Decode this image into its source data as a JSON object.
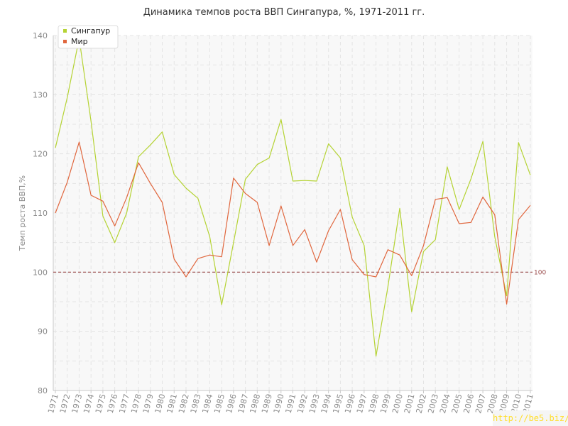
{
  "chart_data": {
    "type": "line",
    "title": "Динамика темпов роста ВВП Сингапура, %, 1971-2011 гг.",
    "ylabel": "Темп роста ВВП,%",
    "xlabel": "",
    "ylim": [
      80,
      140
    ],
    "yticks": [
      "80",
      "90",
      "100",
      "110",
      "120",
      "130",
      "140"
    ],
    "categories": [
      "1971",
      "1972",
      "1973",
      "1974",
      "1975",
      "1976",
      "1977",
      "1978",
      "1979",
      "1980",
      "1981",
      "1982",
      "1983",
      "1984",
      "1985",
      "1986",
      "1987",
      "1988",
      "1989",
      "1990",
      "1991",
      "1992",
      "1993",
      "1994",
      "1995",
      "1996",
      "1997",
      "1998",
      "1999",
      "2000",
      "2001",
      "2002",
      "2003",
      "2004",
      "2005",
      "2006",
      "2007",
      "2008",
      "2009",
      "2010",
      "2011"
    ],
    "series": [
      {
        "name": "Сингапур",
        "color": "#b5d334",
        "values": [
          121,
          129.5,
          139.5,
          125.5,
          109.5,
          105,
          110,
          119.5,
          121.5,
          123.7,
          116.5,
          114.2,
          112.5,
          106,
          94.5,
          105,
          115.7,
          118.2,
          119.3,
          125.8,
          115.4,
          115.5,
          115.4,
          121.7,
          119.3,
          109.3,
          104.5,
          85.8,
          97.5,
          110.8,
          93.3,
          103.5,
          105.5,
          117.8,
          110.6,
          115.8,
          122.1,
          106,
          96,
          121.9,
          116.4
        ]
      },
      {
        "name": "Мир",
        "color": "#e0663d",
        "values": [
          110,
          115.2,
          122,
          113,
          112,
          107.8,
          112.6,
          118.5,
          115,
          111.8,
          102.2,
          99.2,
          102.3,
          102.9,
          102.6,
          115.9,
          113.3,
          111.8,
          104.5,
          111.2,
          104.5,
          107.2,
          101.7,
          107,
          110.6,
          102.1,
          99.6,
          99.2,
          103.8,
          102.9,
          99.4,
          104.5,
          112.3,
          112.6,
          108.2,
          108.4,
          112.7,
          109.7,
          94.6,
          108.9,
          111.3
        ]
      }
    ],
    "reference_line": {
      "value": 100,
      "label": "100",
      "color": "#9b4d4d"
    },
    "legend": {
      "position": "top-left"
    },
    "grid": true
  },
  "watermark": "http://be5.biz/"
}
